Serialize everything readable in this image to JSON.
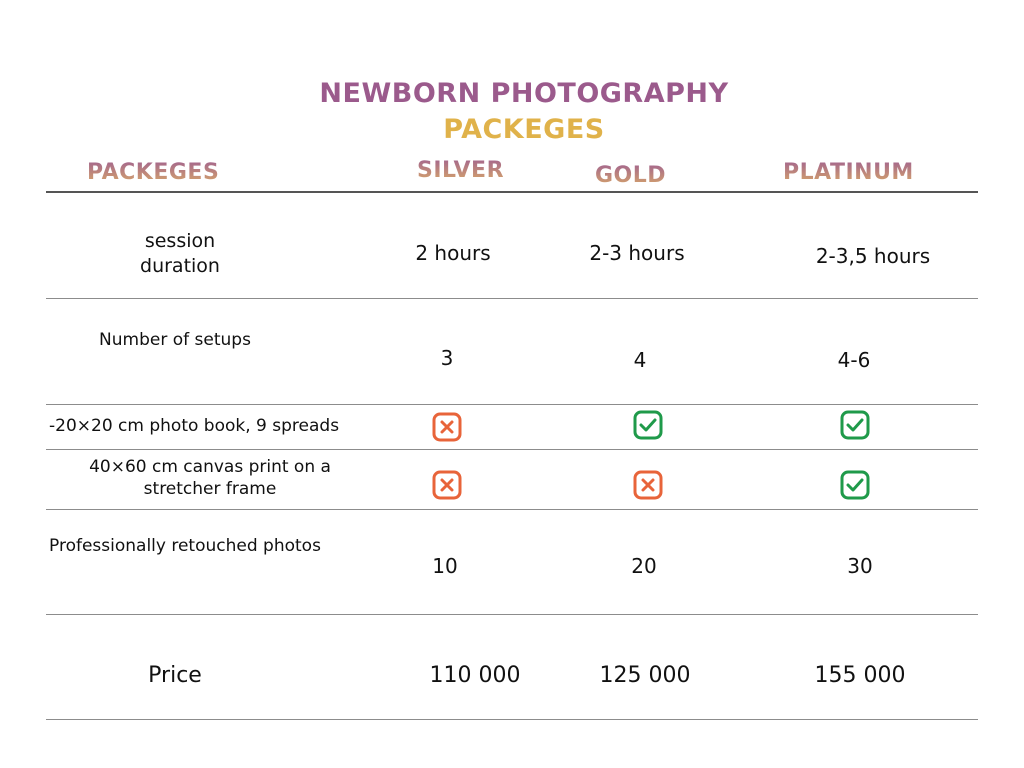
{
  "title": {
    "line1": "NEWBORN PHOTOGRAPHY",
    "line2": "PACKEGES"
  },
  "header": {
    "label": "PACKEGES",
    "silver": "SILVER",
    "gold": "GOLD",
    "platinum": "PLATINUM"
  },
  "rows": {
    "session": {
      "label_line1": "session",
      "label_line2": "duration",
      "silver": "2 hours",
      "gold": "2-3 hours",
      "platinum": "2-3,5 hours"
    },
    "setups": {
      "label": "Number of setups",
      "silver": "3",
      "gold": "4",
      "platinum": "4-6"
    },
    "photobook": {
      "label": "-20×20 cm photo book, 9 spreads",
      "silver": "no",
      "gold": "yes",
      "platinum": "yes"
    },
    "canvas": {
      "label_line1": "40×60 cm canvas print on a",
      "label_line2": "stretcher frame",
      "silver": "no",
      "gold": "no",
      "platinum": "yes"
    },
    "retouched": {
      "label": "Professionally retouched photos",
      "silver": "10",
      "gold": "20",
      "platinum": "30"
    },
    "price": {
      "label": "Price",
      "silver": "110 000",
      "gold": "125 000",
      "platinum": "155 000"
    }
  },
  "colors": {
    "no": "#e8643a",
    "yes": "#1f9a4a",
    "title_purple": "#9b5a8c",
    "title_gold": "#e0b24a"
  },
  "icons": {
    "no": "x-square-icon",
    "yes": "check-square-icon"
  }
}
